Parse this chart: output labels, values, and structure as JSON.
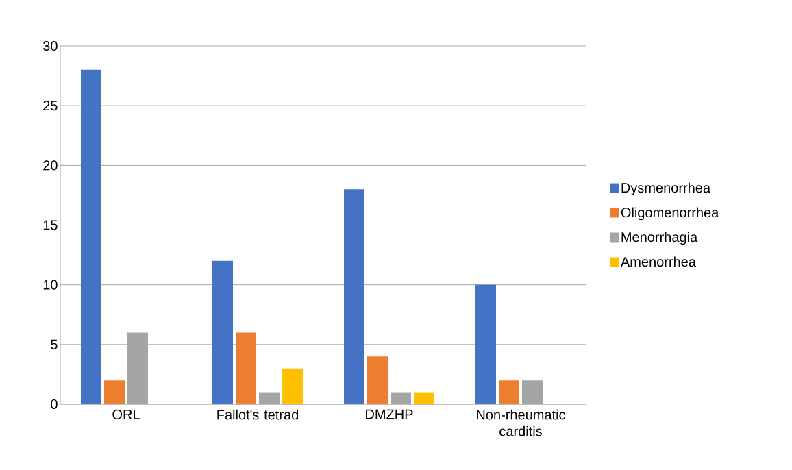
{
  "chart_data": {
    "type": "bar",
    "categories": [
      "ORL",
      "Fallot's tetrad",
      "DMZHP",
      "Non-rheumatic carditis"
    ],
    "series": [
      {
        "name": "Dysmenorrhea",
        "color": "#4472c4",
        "values": [
          28,
          12,
          18,
          10
        ]
      },
      {
        "name": "Oligomenorrhea",
        "color": "#ed7d31",
        "values": [
          2,
          6,
          4,
          2
        ]
      },
      {
        "name": "Menorrhagia",
        "color": "#a5a5a5",
        "values": [
          6,
          1,
          1,
          2
        ]
      },
      {
        "name": "Amenorrhea",
        "color": "#ffc000",
        "values": [
          null,
          3,
          1,
          null
        ]
      }
    ],
    "ylim": [
      0,
      30
    ],
    "yticks": [
      0,
      5,
      10,
      15,
      20,
      25,
      30
    ],
    "grid": "y",
    "legend": "right"
  }
}
